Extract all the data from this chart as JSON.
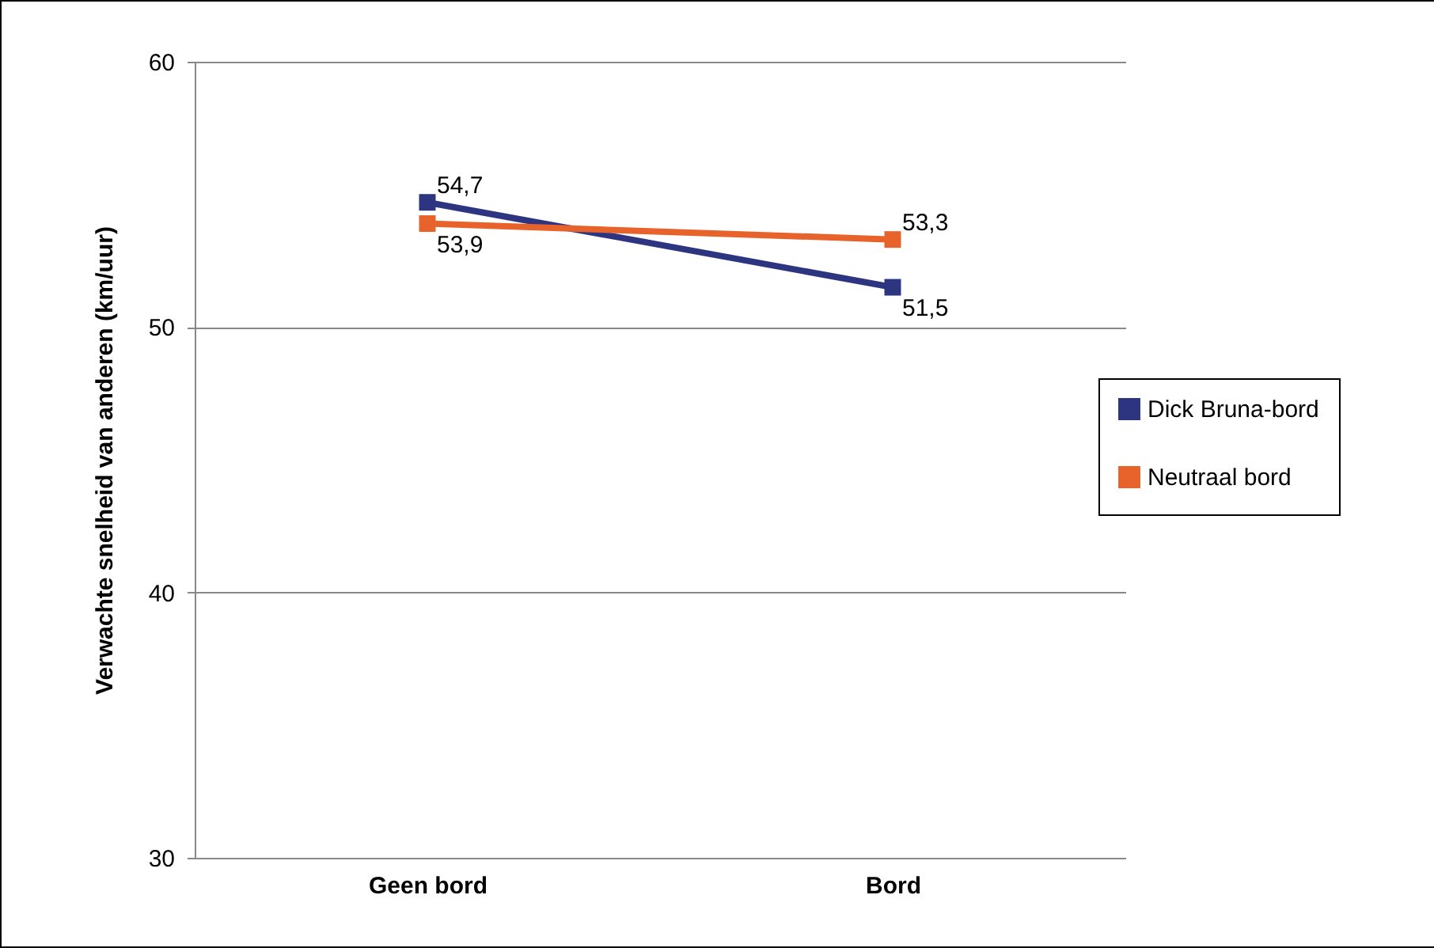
{
  "chart_data": {
    "type": "line",
    "ylabel": "Verwachte snelheid van anderen (km/uur)",
    "categories": [
      "Geen bord",
      "Bord"
    ],
    "series": [
      {
        "name": "Dick Bruna-bord",
        "color": "#2e3580",
        "values": [
          54.7,
          51.5
        ],
        "value_labels": [
          "54,7",
          "51,5"
        ]
      },
      {
        "name": "Neutraal bord",
        "color": "#e8632b",
        "values": [
          53.9,
          53.3
        ],
        "value_labels": [
          "53,9",
          "53,3"
        ]
      }
    ],
    "ylim": [
      30,
      60
    ],
    "yticks": [
      30,
      40,
      50,
      60
    ],
    "grid": "y",
    "legend": "right",
    "marker": "square",
    "line_style": "solid"
  }
}
